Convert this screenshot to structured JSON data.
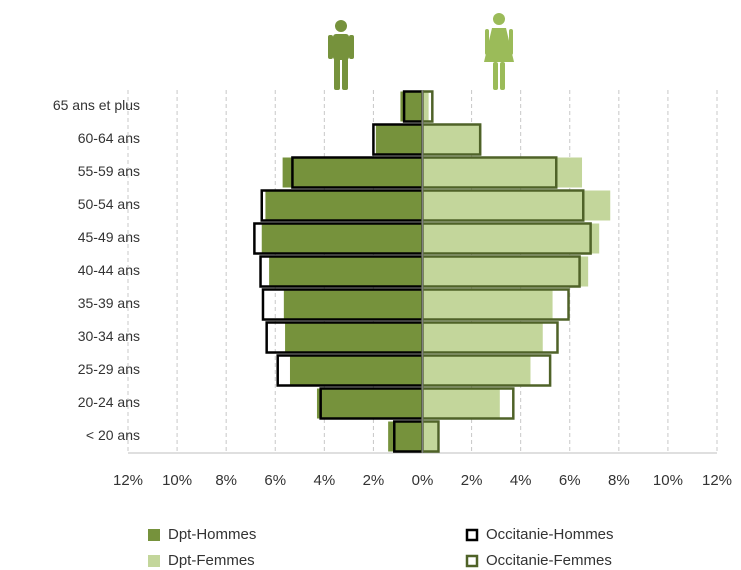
{
  "chart_data": {
    "type": "pyramid",
    "categories": [
      "65 ans et plus",
      "60-64 ans",
      "55-59 ans",
      "50-54 ans",
      "45-49 ans",
      "40-44 ans",
      "35-39 ans",
      "30-34 ans",
      "25-29 ans",
      "20-24 ans",
      "< 20 ans"
    ],
    "series": [
      {
        "name": "Dpt-Hommes",
        "color": "#76923c",
        "style": "fill",
        "values": [
          -0.9,
          -1.9,
          -5.7,
          -6.4,
          -6.55,
          -6.25,
          -5.65,
          -5.6,
          -5.4,
          -4.3,
          -1.4
        ]
      },
      {
        "name": "Occitanie-Hommes",
        "color": "#000000",
        "style": "outline",
        "values": [
          -0.75,
          -2.0,
          -5.3,
          -6.55,
          -6.85,
          -6.6,
          -6.5,
          -6.35,
          -5.9,
          -4.15,
          -1.15
        ]
      },
      {
        "name": "Dpt-Femmes",
        "color": "#c3d69b",
        "style": "fill",
        "values": [
          0.25,
          2.4,
          6.5,
          7.65,
          7.2,
          6.75,
          5.3,
          4.9,
          4.4,
          3.15,
          0.6
        ]
      },
      {
        "name": "Occitanie-Femmes",
        "color": "#4f6228",
        "style": "outline",
        "values": [
          0.4,
          2.35,
          5.45,
          6.55,
          6.85,
          6.4,
          5.95,
          5.5,
          5.2,
          3.7,
          0.65
        ]
      }
    ],
    "xlim": [
      -12,
      12
    ],
    "xticks": [
      {
        "value": -12,
        "label": "12%"
      },
      {
        "value": -10,
        "label": "10%"
      },
      {
        "value": -8,
        "label": "8%"
      },
      {
        "value": -6,
        "label": "6%"
      },
      {
        "value": -4,
        "label": "4%"
      },
      {
        "value": -2,
        "label": "2%"
      },
      {
        "value": 0,
        "label": "0%"
      },
      {
        "value": 2,
        "label": "2%"
      },
      {
        "value": 4,
        "label": "4%"
      },
      {
        "value": 6,
        "label": "6%"
      },
      {
        "value": 8,
        "label": "8%"
      },
      {
        "value": 10,
        "label": "10%"
      },
      {
        "value": 12,
        "label": "12%"
      }
    ],
    "grid": true
  }
}
